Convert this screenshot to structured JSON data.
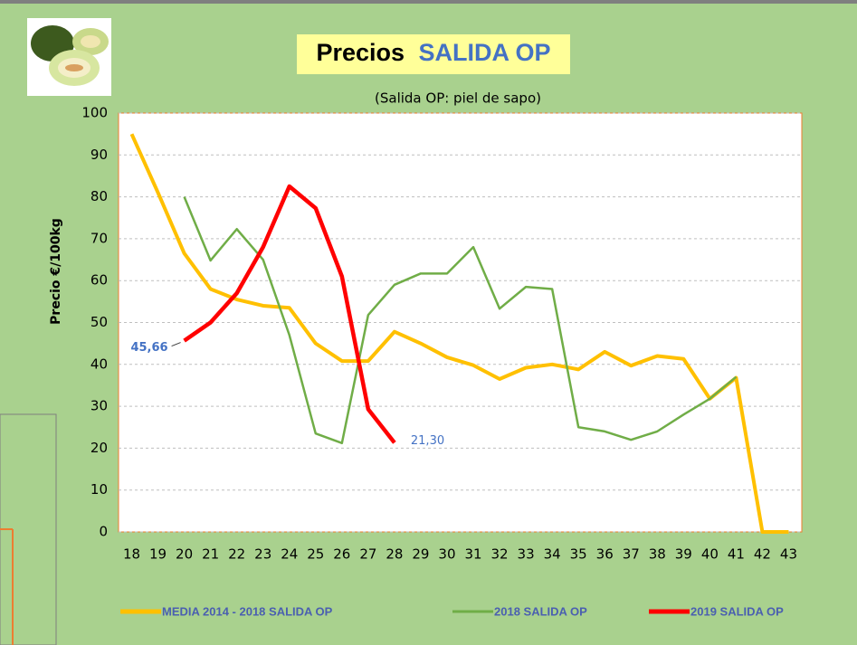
{
  "chart_data": {
    "type": "line",
    "title_parts": [
      "Precios",
      "SALIDA OP"
    ],
    "subtitle": "(Salida OP: piel de sapo)",
    "y_label": "Precio €/100kg",
    "categories": [
      "18",
      "19",
      "20",
      "21",
      "22",
      "23",
      "24",
      "25",
      "26",
      "27",
      "28",
      "29",
      "30",
      "31",
      "32",
      "33",
      "34",
      "35",
      "36",
      "37",
      "38",
      "39",
      "40",
      "41",
      "42",
      "43"
    ],
    "ylim": [
      0,
      100
    ],
    "yticks": [
      0,
      10,
      20,
      30,
      40,
      50,
      60,
      70,
      80,
      90,
      100
    ],
    "grid": true,
    "series": [
      {
        "name": "MEDIA 2014 - 2018 SALIDA OP",
        "color": "#ffc000",
        "values": [
          95,
          81,
          66.5,
          58,
          55.5,
          54,
          53.5,
          45,
          40.8,
          40.8,
          47.8,
          45,
          41.7,
          39.8,
          36.5,
          39.2,
          40,
          38.8,
          43,
          39.7,
          42,
          41.3,
          31.8,
          36.8,
          0,
          0
        ]
      },
      {
        "name": "2018 SALIDA OP",
        "color": "#70ad47",
        "values": [
          null,
          null,
          80,
          64.8,
          72.3,
          65,
          47,
          23.5,
          21.2,
          51.8,
          59,
          61.7,
          61.7,
          68,
          53.3,
          58.5,
          58,
          25,
          24,
          22,
          24,
          28,
          31.8,
          37,
          null,
          null
        ]
      },
      {
        "name": "2019 SALIDA OP",
        "color": "#ff0000",
        "values": [
          null,
          null,
          45.66,
          50,
          57,
          68,
          82.5,
          77.3,
          61,
          29.3,
          21.3,
          null,
          null,
          null,
          null,
          null,
          null,
          null,
          null,
          null,
          null,
          null,
          null,
          null,
          null,
          null
        ],
        "value_labels": [
          null,
          null,
          "45,66",
          null,
          null,
          null,
          null,
          null,
          null,
          null,
          "21,30",
          null,
          null,
          null,
          null,
          null,
          null,
          null,
          null,
          null,
          null,
          null,
          null,
          null,
          null,
          null
        ]
      }
    ]
  }
}
